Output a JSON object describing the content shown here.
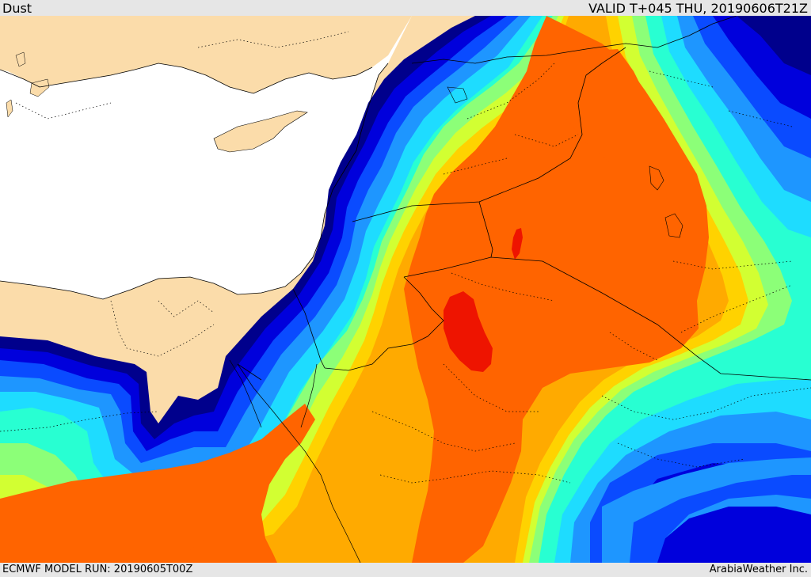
{
  "header": {
    "title": "Dust",
    "valid": "VALID T+045 THU, 20190606T21Z"
  },
  "footer": {
    "model_run": "ECMWF MODEL RUN: 20190605T00Z",
    "credit": "ArabiaWeather Inc."
  },
  "colors": {
    "land": "#fbdcaa",
    "sea": "#ffffff",
    "dust_levels": [
      "#00008c",
      "#0000dc",
      "#0a4bff",
      "#1e96ff",
      "#1edcff",
      "#28ffd2",
      "#8cff78",
      "#d2ff32",
      "#ffd200",
      "#ffaa00",
      "#ff6400",
      "#ee1400"
    ]
  },
  "icons": [
    "coastline-icon",
    "border-icon"
  ]
}
